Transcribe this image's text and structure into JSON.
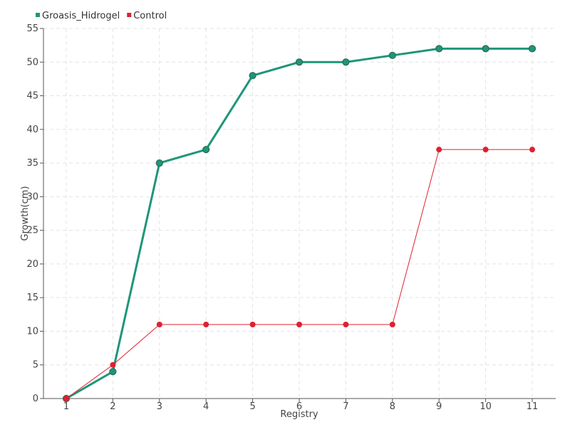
{
  "chart_data": {
    "type": "line",
    "xlabel": "Registry",
    "ylabel": "Growth(cm)",
    "categories": [
      "1",
      "2",
      "3",
      "4",
      "5",
      "6",
      "7",
      "8",
      "9",
      "10",
      "11"
    ],
    "ylim": [
      0,
      55
    ],
    "yticks": [
      0,
      5,
      10,
      15,
      20,
      25,
      30,
      35,
      40,
      45,
      50,
      55
    ],
    "grid": true,
    "legend_position": "top-left",
    "series": [
      {
        "name": "Groasis_Hidrogel",
        "color": "#1e9678",
        "values": [
          0,
          4,
          35,
          37,
          48,
          50,
          50,
          51,
          52,
          52,
          52
        ]
      },
      {
        "name": "Control",
        "color": "#e02030",
        "values": [
          0,
          5,
          11,
          11,
          11,
          11,
          11,
          11,
          37,
          37,
          37
        ]
      }
    ]
  }
}
